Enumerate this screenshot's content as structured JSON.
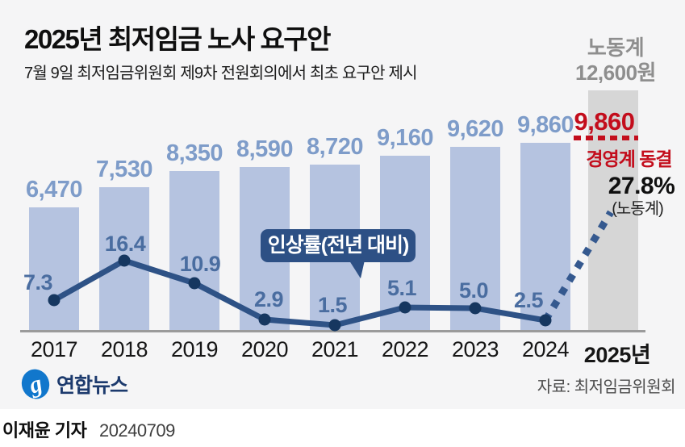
{
  "header": {
    "title": "2025년 최저임금 노사 요구안",
    "subtitle": "7월 9일 최저임금위원회 제9차 전원회의에서 최초 요구안 제시"
  },
  "chart_data": {
    "type": "bar+line",
    "title": "2025년 최저임금 노사 요구안",
    "categories": [
      "2017",
      "2018",
      "2019",
      "2020",
      "2021",
      "2022",
      "2023",
      "2024",
      "2025년"
    ],
    "series": [
      {
        "name": "최저임금",
        "type": "bar",
        "unit": "원",
        "values": [
          6470,
          7530,
          8350,
          8590,
          8720,
          9160,
          9620,
          9860
        ],
        "labels": [
          "6,470",
          "7,530",
          "8,350",
          "8,590",
          "8,720",
          "9,160",
          "9,620",
          "9,860"
        ]
      },
      {
        "name": "인상률(전년 대비)",
        "type": "line",
        "unit": "%",
        "values": [
          7.3,
          16.4,
          10.9,
          2.9,
          1.5,
          5.1,
          5.0,
          2.5
        ],
        "labels": [
          "7.3",
          "16.4",
          "10.9",
          "2.9",
          "1.5",
          "5.1",
          "5.0",
          "2.5"
        ]
      }
    ],
    "line_callout": "인상률(전년 대비)",
    "annotations_2025": {
      "labor_group_label": "노동계",
      "labor_amount": "12,600원",
      "labor_amount_value": 12600,
      "labor_rate": "27.8%",
      "labor_rate_value": 27.8,
      "labor_rate_note": "(노동계)",
      "management_amount": "9,860",
      "management_amount_value": 9860,
      "management_label": "경영계 동결"
    },
    "legend_position": "none",
    "grid": false
  },
  "footer": {
    "logo_text": "연합뉴스",
    "source": "자료: 최저임금위원회",
    "reporter": "이재윤 기자",
    "date": "20240709"
  },
  "colors": {
    "bar": "#b5c3e0",
    "bar_2025": "#d6d6d6",
    "bar_label": "#7e9cc9",
    "rate_label": "#4a6da0",
    "line": "#2e5286",
    "line_dot": "#163760",
    "dotted_line": "#35598f",
    "badge_bg": "#2d5085",
    "accent_red": "#c30d1c",
    "gray_text": "#8e8e8e",
    "card_bg": "#f5f5f6"
  }
}
